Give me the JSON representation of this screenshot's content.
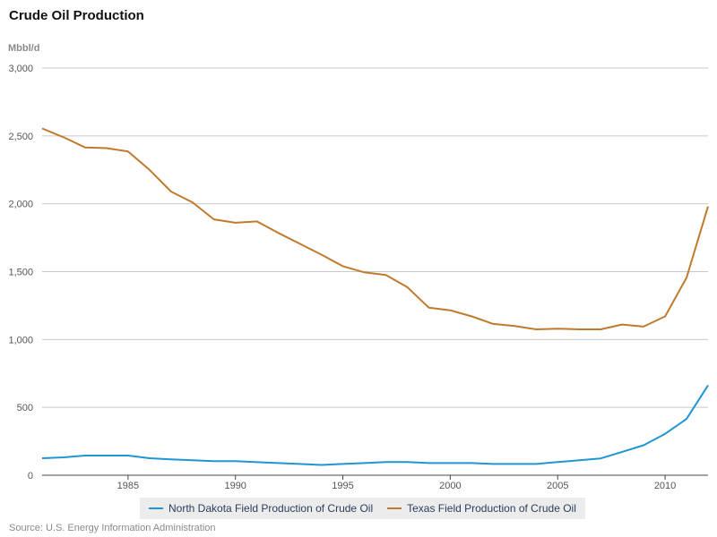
{
  "chart_data": {
    "type": "line",
    "title": "Crude Oil Production",
    "ylabel": "Mbbl/d",
    "xlabel": "",
    "xlim": [
      1981,
      2012
    ],
    "ylim": [
      0,
      3000
    ],
    "x_ticks": [
      1985,
      1990,
      1995,
      2000,
      2005,
      2010
    ],
    "y_ticks": [
      0,
      500,
      1000,
      1500,
      2000,
      2500,
      3000
    ],
    "y_tick_labels": [
      "0",
      "500",
      "1,000",
      "1,500",
      "2,000",
      "2,500",
      "3,000"
    ],
    "grid": "horizontal",
    "legend_position": "bottom",
    "x": [
      1981,
      1982,
      1983,
      1984,
      1985,
      1986,
      1987,
      1988,
      1989,
      1990,
      1991,
      1992,
      1993,
      1994,
      1995,
      1996,
      1997,
      1998,
      1999,
      2000,
      2001,
      2002,
      2003,
      2004,
      2005,
      2006,
      2007,
      2008,
      2009,
      2010,
      2011,
      2012
    ],
    "series": [
      {
        "name": "North Dakota Field Production of Crude Oil",
        "color": "#1f96d3",
        "values": [
          125,
          132,
          145,
          145,
          145,
          125,
          117,
          110,
          104,
          104,
          96,
          90,
          83,
          76,
          83,
          90,
          97,
          97,
          90,
          90,
          90,
          83,
          83,
          83,
          97,
          110,
          124,
          172,
          221,
          305,
          415,
          662
        ]
      },
      {
        "name": "Texas Field Production of Crude Oil",
        "color": "#c07a2e",
        "values": [
          2555,
          2490,
          2415,
          2410,
          2385,
          2250,
          2090,
          2010,
          1885,
          1860,
          1870,
          1785,
          1705,
          1625,
          1540,
          1495,
          1475,
          1385,
          1235,
          1215,
          1170,
          1115,
          1100,
          1075,
          1080,
          1075,
          1075,
          1110,
          1095,
          1170,
          1455,
          1980
        ]
      }
    ]
  },
  "source": "Source: U.S. Energy Information Administration"
}
